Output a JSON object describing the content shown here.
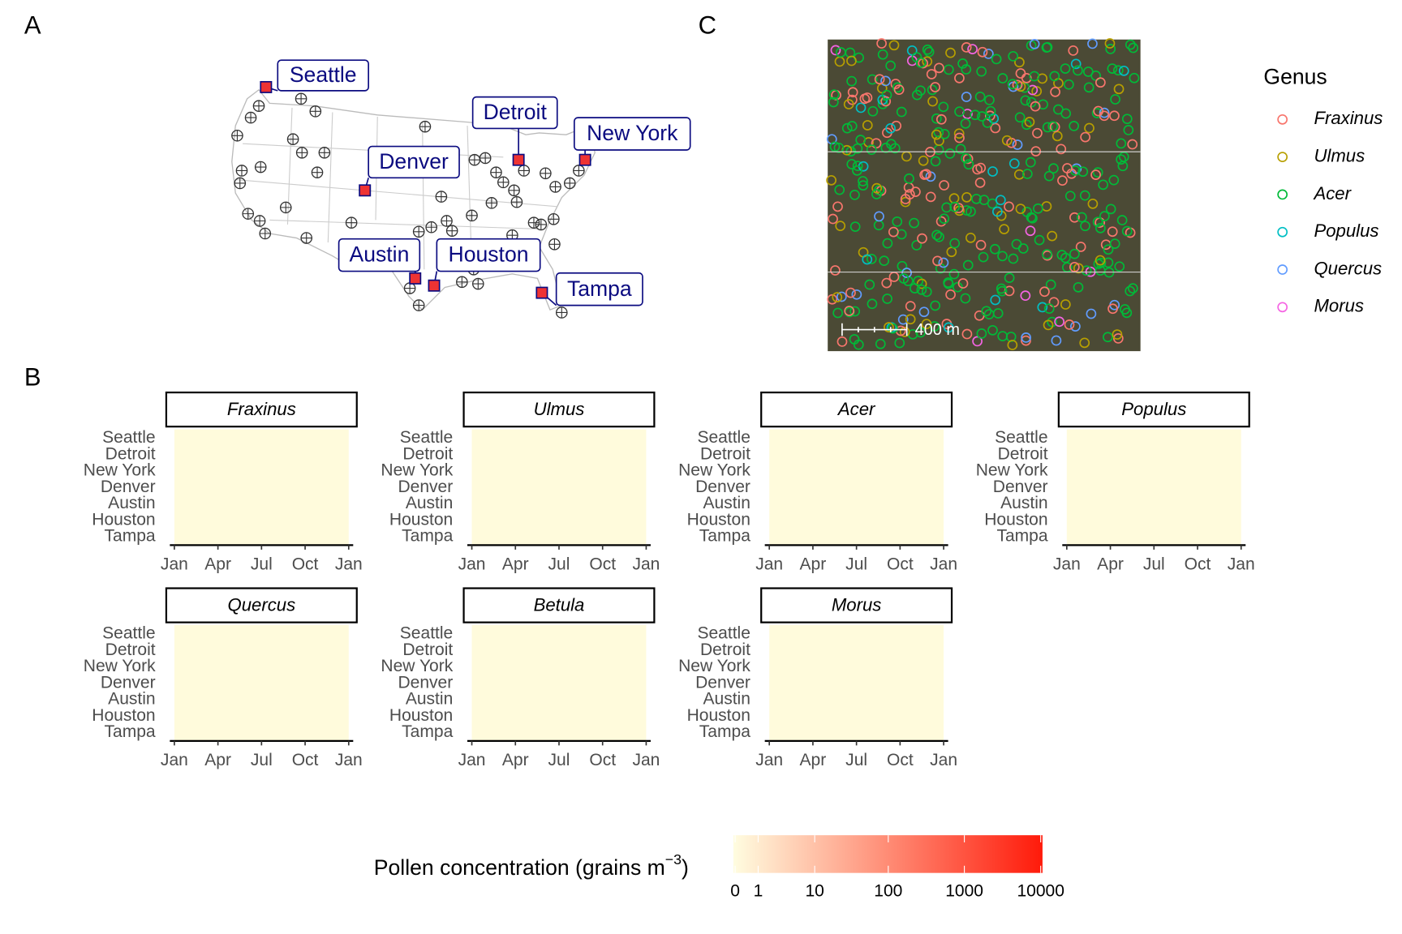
{
  "panels": {
    "a": "A",
    "b": "B",
    "c": "C"
  },
  "cities": [
    "Seattle",
    "Detroit",
    "New York",
    "Denver",
    "Austin",
    "Houston",
    "Tampa"
  ],
  "scale_bar": "400 m",
  "legend": {
    "title": "Genus",
    "items": [
      {
        "name": "Fraxinus",
        "color": "#f8766d"
      },
      {
        "name": "Ulmus",
        "color": "#b79f00"
      },
      {
        "name": "Acer",
        "color": "#00ba38"
      },
      {
        "name": "Populus",
        "color": "#00bfc4"
      },
      {
        "name": "Quercus",
        "color": "#619cff"
      },
      {
        "name": "Morus",
        "color": "#f564e3"
      }
    ]
  },
  "heatmap": {
    "genera": [
      "Fraxinus",
      "Ulmus",
      "Acer",
      "Populus",
      "Quercus",
      "Betula",
      "Morus"
    ],
    "x_ticks": [
      "Jan",
      "Apr",
      "Jul",
      "Oct",
      "Jan"
    ]
  },
  "colorbar": {
    "title": "Pollen concentration (grains m",
    "title_sup": "−3",
    "title_end": ")",
    "lim": [
      0,
      10000
    ],
    "ticks": [
      0,
      1,
      10,
      100,
      1000,
      10000
    ],
    "scale": "log1p",
    "colors": [
      "#fffde0",
      "#ff1a0a"
    ]
  }
}
